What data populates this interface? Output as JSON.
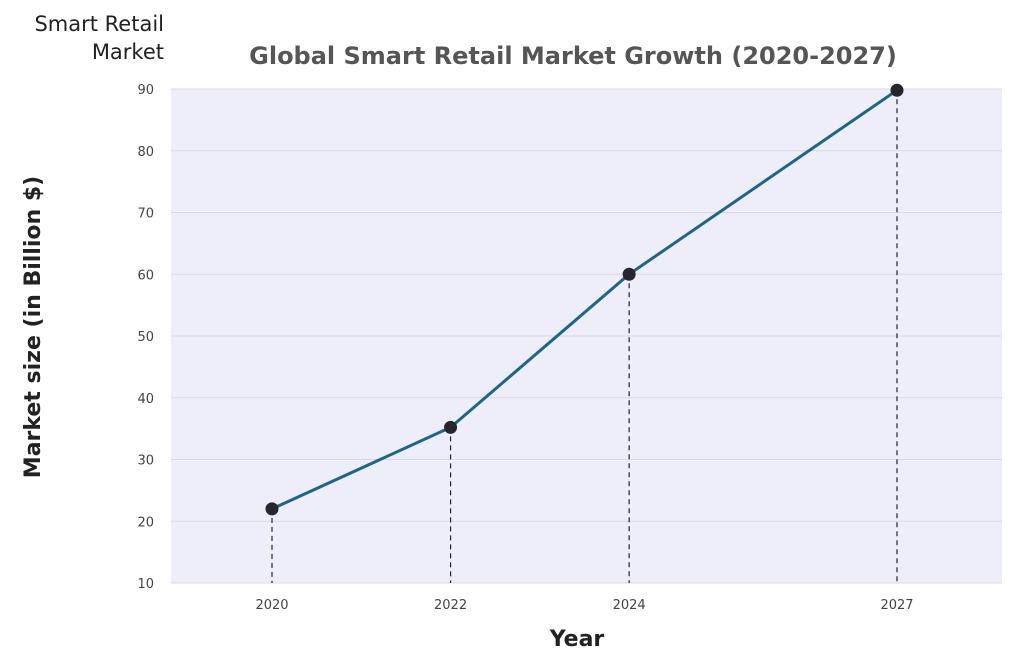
{
  "corner_label": {
    "line1": "Smart Retail",
    "line2": "Market"
  },
  "chart_data": {
    "type": "line",
    "title": "Global Smart Retail Market Growth (2020-2027)",
    "xlabel": "Year",
    "ylabel": "Market size (in Billion $)",
    "categories": [
      "2020",
      "2022",
      "2024",
      "2027"
    ],
    "series": [
      {
        "values": [
          22,
          35.2,
          60,
          89.8
        ]
      }
    ],
    "ylim": [
      10,
      90
    ],
    "yticks": [
      10,
      20,
      30,
      40,
      50,
      60,
      70,
      80,
      90
    ],
    "grid": true,
    "drop_lines": true,
    "colors": {
      "line": "#1f6585",
      "marker": "#26262c",
      "plot_bg": "#eeeefa",
      "grid": "#d9d9e6"
    }
  }
}
